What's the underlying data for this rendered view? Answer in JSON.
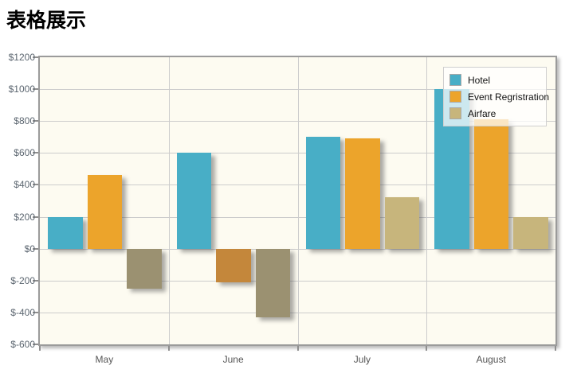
{
  "title": "表格展示",
  "chart_data": {
    "type": "bar",
    "title": "表格展示",
    "categories": [
      "May",
      "June",
      "July",
      "August"
    ],
    "series": [
      {
        "name": "Hotel",
        "color": "#48AEC6",
        "neg_color": "#48AEC6",
        "values": [
          200,
          600,
          700,
          1000
        ]
      },
      {
        "name": "Event Regristration",
        "color": "#ECA42B",
        "neg_color": "#C4873B",
        "values": [
          460,
          -210,
          690,
          810
        ]
      },
      {
        "name": "Airfare",
        "color": "#C7B57C",
        "neg_color": "#9B9171",
        "values": [
          -250,
          -430,
          320,
          200
        ]
      }
    ],
    "ylim": [
      -600,
      1200
    ],
    "ytick_step": 200,
    "ytick_labels": [
      "$1200",
      "$1000",
      "$800",
      "$600",
      "$400",
      "$200",
      "$0",
      "$-200",
      "$-400",
      "$-600"
    ],
    "grid": true,
    "legend_position": "top-right",
    "plot_background": "#FDFBF1",
    "gridline_color": "#CCCCCC",
    "axis_border_color": "#9B9B9B",
    "axis_label_color": "#5C6670"
  }
}
